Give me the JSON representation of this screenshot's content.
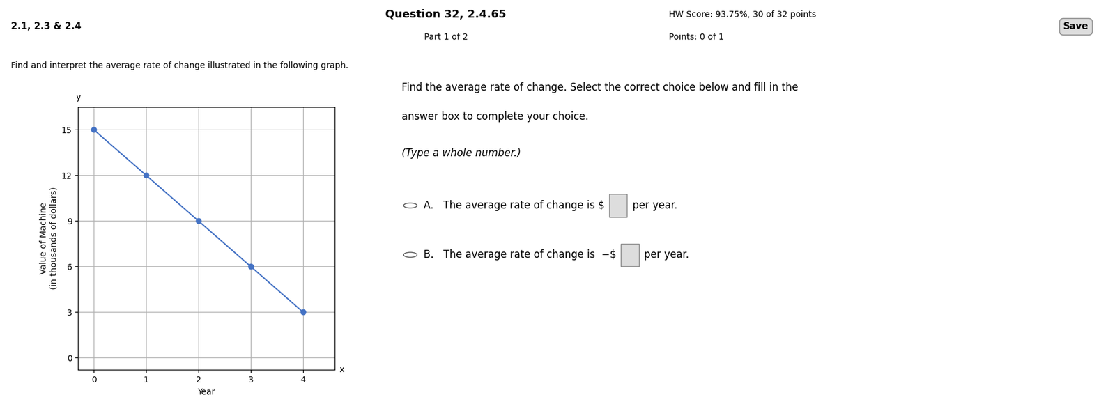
{
  "chart_data": {
    "type": "line",
    "x": [
      0,
      1,
      2,
      3,
      4
    ],
    "values": [
      15,
      12,
      9,
      6,
      3
    ],
    "color": "#4472c4",
    "marker": "o",
    "x_label": "Year",
    "y_label": "Value of Machine\n(in thousands of dollars)",
    "xlim": [
      -0.3,
      4.6
    ],
    "ylim": [
      -0.8,
      16.5
    ],
    "xticks": [
      0,
      1,
      2,
      3,
      4
    ],
    "yticks": [
      0,
      3,
      6,
      9,
      12,
      15
    ],
    "grid": true,
    "annotations": [
      "2.1, 2.3 & 2.4",
      "Question 32, 2.4.65",
      "Part 1 of 2",
      "HW Score: 93.75%, 30 of 32 points",
      "Points: 0 of 1",
      "Save",
      "Find and interpret the average rate of change illustrated in the following graph.",
      "Find the average rate of change. Select the correct choice below and fill in the",
      "answer box to complete your choice.",
      "(Type a whole number.)",
      "A.   The average rate of change is $",
      " per year.",
      "B.   The average rate of change is  −$",
      " per year.",
      "x",
      "y"
    ]
  }
}
